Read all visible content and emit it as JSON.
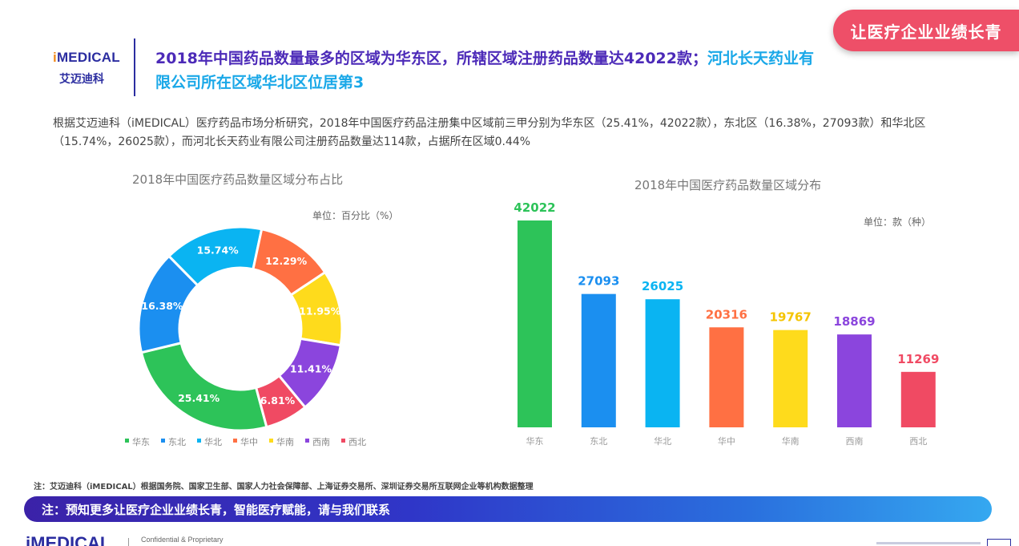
{
  "slogan": "让医疗企业业绩长青",
  "logo": {
    "brand_prefix": "i",
    "brand_rest": "MEDICAL",
    "cn": "艾迈迪科"
  },
  "title": {
    "main": "2018年中国药品数量最多的区域为华东区，所辖区域注册药品数量达42022款；",
    "highlight": "河北长天药业有限公司所在区域华北区位居第3"
  },
  "intro": "根据艾迈迪科（iMEDICAL）医疗药品市场分析研究，2018年中国医疗药品注册集中区域前三甲分别为华东区（25.41%，42022款），东北区（16.38%，27093款）和华北区（15.74%，26025款），而河北长天药业有限公司注册药品数量达114款，占据所在区域0.44%",
  "footnote": "注：艾迈迪科（iMEDICAL）根据国务院、国家卫生部、国家人力社会保障部、上海证券交易所、深圳证券交易所互联网企业等机构数据整理",
  "banner": "注：预知更多让医疗企业业绩长青，智能医疗赋能，请与我们联系",
  "bottom": {
    "logo_text": "iMEDICAL",
    "confidential": "Confidential & Proprietary"
  },
  "chart_data": [
    {
      "type": "pie",
      "title": "2018年中国医疗药品数量区域分布占比",
      "unit": "单位：百分比（%）",
      "legend_position": "bottom",
      "categories": [
        "华东",
        "东北",
        "华北",
        "华中",
        "华南",
        "西南",
        "西北"
      ],
      "values": [
        25.41,
        16.38,
        15.74,
        12.29,
        11.95,
        11.41,
        6.81
      ],
      "labels": [
        "25.41%",
        "16.38%",
        "15.74%",
        "12.29%",
        "11.95%",
        "11.41%",
        "6.81%"
      ],
      "colors": [
        "#2dc359",
        "#1b8ff0",
        "#0ab4f2",
        "#ff7043",
        "#fedb1c",
        "#8b45dd",
        "#f04a63"
      ]
    },
    {
      "type": "bar",
      "title": "2018年中国医疗药品数量区域分布",
      "unit": "单位：款（种）",
      "categories": [
        "华东",
        "东北",
        "华北",
        "华中",
        "华南",
        "西南",
        "西北"
      ],
      "values": [
        42022,
        27093,
        26025,
        20316,
        19767,
        18869,
        11269
      ],
      "labels": [
        "42022",
        "27093",
        "26025",
        "20316",
        "19767",
        "18869",
        "11269"
      ],
      "ylim": [
        0,
        42022
      ],
      "grid": false,
      "colors": [
        "#2dc359",
        "#1b8ff0",
        "#0ab4f2",
        "#ff7043",
        "#fedb1c",
        "#8b45dd",
        "#f04a63"
      ],
      "label_colors": [
        "#2dc359",
        "#1b8ff0",
        "#0ab4f2",
        "#ff7043",
        "#f5c400",
        "#8b45dd",
        "#f04a63"
      ]
    }
  ]
}
